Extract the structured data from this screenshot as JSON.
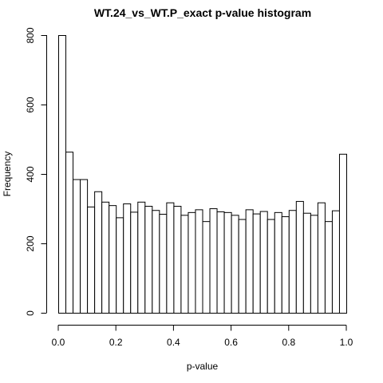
{
  "chart_data": {
    "type": "bar",
    "title": "WT.24_vs_WT.P_exact p-value histogram",
    "xlabel": "p-value",
    "ylabel": "Frequency",
    "bin_width": 0.025,
    "xlim": [
      0,
      1
    ],
    "ylim": [
      0,
      800
    ],
    "x_ticks": [
      0.0,
      0.2,
      0.4,
      0.6,
      0.8,
      1.0
    ],
    "x_tick_labels": [
      "0.0",
      "0.2",
      "0.4",
      "0.6",
      "0.8",
      "1.0"
    ],
    "y_ticks": [
      0,
      200,
      400,
      600,
      800
    ],
    "y_tick_labels": [
      "0",
      "200",
      "400",
      "600",
      "800"
    ],
    "bins": [
      {
        "start": 0.0,
        "end": 0.025,
        "count": 800
      },
      {
        "start": 0.025,
        "end": 0.05,
        "count": 464
      },
      {
        "start": 0.05,
        "end": 0.075,
        "count": 385
      },
      {
        "start": 0.075,
        "end": 0.1,
        "count": 385
      },
      {
        "start": 0.1,
        "end": 0.125,
        "count": 306
      },
      {
        "start": 0.125,
        "end": 0.15,
        "count": 350
      },
      {
        "start": 0.15,
        "end": 0.175,
        "count": 320
      },
      {
        "start": 0.175,
        "end": 0.2,
        "count": 310
      },
      {
        "start": 0.2,
        "end": 0.225,
        "count": 275
      },
      {
        "start": 0.225,
        "end": 0.25,
        "count": 315
      },
      {
        "start": 0.25,
        "end": 0.275,
        "count": 291
      },
      {
        "start": 0.275,
        "end": 0.3,
        "count": 320
      },
      {
        "start": 0.3,
        "end": 0.325,
        "count": 308
      },
      {
        "start": 0.325,
        "end": 0.35,
        "count": 296
      },
      {
        "start": 0.35,
        "end": 0.375,
        "count": 285
      },
      {
        "start": 0.375,
        "end": 0.4,
        "count": 318
      },
      {
        "start": 0.4,
        "end": 0.425,
        "count": 308
      },
      {
        "start": 0.425,
        "end": 0.45,
        "count": 282
      },
      {
        "start": 0.45,
        "end": 0.475,
        "count": 290
      },
      {
        "start": 0.475,
        "end": 0.5,
        "count": 298
      },
      {
        "start": 0.5,
        "end": 0.525,
        "count": 264
      },
      {
        "start": 0.525,
        "end": 0.55,
        "count": 301
      },
      {
        "start": 0.55,
        "end": 0.575,
        "count": 292
      },
      {
        "start": 0.575,
        "end": 0.6,
        "count": 290
      },
      {
        "start": 0.6,
        "end": 0.625,
        "count": 282
      },
      {
        "start": 0.625,
        "end": 0.65,
        "count": 270
      },
      {
        "start": 0.65,
        "end": 0.675,
        "count": 298
      },
      {
        "start": 0.675,
        "end": 0.7,
        "count": 286
      },
      {
        "start": 0.7,
        "end": 0.725,
        "count": 293
      },
      {
        "start": 0.725,
        "end": 0.75,
        "count": 270
      },
      {
        "start": 0.75,
        "end": 0.775,
        "count": 290
      },
      {
        "start": 0.775,
        "end": 0.8,
        "count": 278
      },
      {
        "start": 0.8,
        "end": 0.825,
        "count": 296
      },
      {
        "start": 0.825,
        "end": 0.85,
        "count": 322
      },
      {
        "start": 0.85,
        "end": 0.875,
        "count": 288
      },
      {
        "start": 0.875,
        "end": 0.9,
        "count": 282
      },
      {
        "start": 0.9,
        "end": 0.925,
        "count": 318
      },
      {
        "start": 0.925,
        "end": 0.95,
        "count": 264
      },
      {
        "start": 0.95,
        "end": 0.975,
        "count": 295
      },
      {
        "start": 0.975,
        "end": 1.0,
        "count": 458
      }
    ],
    "grid": false,
    "legend": "none",
    "bar_fill": "#ffffff",
    "bar_stroke": "#000000"
  }
}
